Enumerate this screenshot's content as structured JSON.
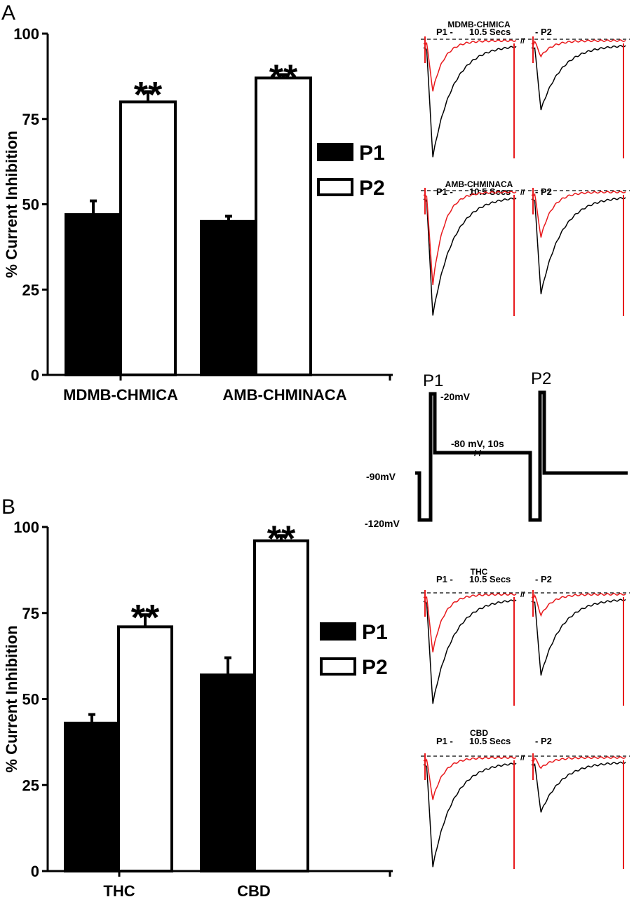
{
  "figure": {
    "panel_a_letter": "A",
    "panel_b_letter": "B",
    "protocol": {
      "p1_label": "P1",
      "p2_label": "P2",
      "depol_label": "-20mV",
      "interpulse_label": "-80 mV, 10s",
      "holding_label": "-90mV",
      "hyperpol_label": "-120mV"
    }
  },
  "chart_data": [
    {
      "panel": "A",
      "type": "bar",
      "ylabel": "% Current Inhibition",
      "ylim": [
        0,
        100
      ],
      "yticks": [
        "0",
        "25",
        "50",
        "75",
        "100"
      ],
      "categories": [
        "MDMB-CHMICA",
        "AMB-CHMINACA"
      ],
      "series": [
        {
          "name": "P1",
          "color": "#000000",
          "values": [
            47,
            45
          ],
          "errors": [
            4,
            1.5
          ]
        },
        {
          "name": "P2",
          "color": "#ffffff",
          "values": [
            80,
            87
          ],
          "errors": [
            3,
            1
          ]
        }
      ],
      "annotations": [
        "**",
        "**"
      ],
      "legend": "right"
    },
    {
      "panel": "B",
      "type": "bar",
      "ylabel": "% Current Inhibition",
      "ylim": [
        0,
        100
      ],
      "yticks": [
        "0",
        "25",
        "50",
        "75",
        "100"
      ],
      "categories": [
        "THC",
        "CBD"
      ],
      "series": [
        {
          "name": "P1",
          "color": "#000000",
          "values": [
            43,
            57
          ],
          "errors": [
            2.5,
            5
          ]
        },
        {
          "name": "P2",
          "color": "#ffffff",
          "values": [
            71,
            96
          ],
          "errors": [
            3.5,
            1.5
          ]
        }
      ],
      "annotations": [
        "**",
        "**"
      ],
      "legend": "right"
    }
  ],
  "traces": [
    {
      "title": "MDMB-CHMICA",
      "p1_label": "P1 -",
      "interval_label": "10.5 Secs",
      "p2_label": "- P2",
      "control_color": "#000000",
      "drug_color": "#e8191c",
      "p1_peak_control": 1.0,
      "p1_peak_drug": 0.45,
      "p2_peak_control": 0.58,
      "p2_peak_drug": 0.14
    },
    {
      "title": "AMB-CHMINACA",
      "p1_label": "P1 -",
      "interval_label": "10.5 Secs",
      "p2_label": "- P2",
      "control_color": "#000000",
      "drug_color": "#e8191c",
      "p1_peak_control": 1.0,
      "p1_peak_drug": 0.78,
      "p2_peak_control": 0.82,
      "p2_peak_drug": 0.38
    },
    {
      "title": "THC",
      "p1_label": "P1 -",
      "interval_label": "10.5 Secs",
      "p2_label": "- P2",
      "control_color": "#000000",
      "drug_color": "#e8191c",
      "p1_peak_control": 1.0,
      "p1_peak_drug": 0.55,
      "p2_peak_control": 0.73,
      "p2_peak_drug": 0.2
    },
    {
      "title": "CBD",
      "p1_label": "P1 -",
      "interval_label": "10.5 Secs",
      "p2_label": "- P2",
      "control_color": "#000000",
      "drug_color": "#e8191c",
      "p1_peak_control": 1.0,
      "p1_peak_drug": 0.4,
      "p2_peak_control": 0.48,
      "p2_peak_drug": 0.1
    }
  ]
}
